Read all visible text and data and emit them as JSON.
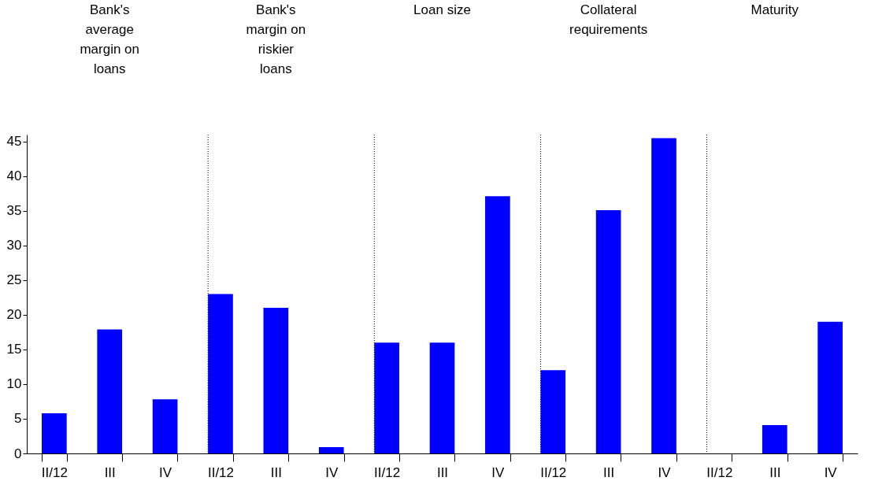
{
  "chart_data": {
    "type": "bar",
    "categories": [
      "II/12",
      "III",
      "IV",
      "II/12",
      "III",
      "IV",
      "II/12",
      "III",
      "IV",
      "II/12",
      "III",
      "IV",
      "II/12",
      "III",
      "IV"
    ],
    "values": [
      5.8,
      17.9,
      7.8,
      23,
      21,
      0.9,
      16,
      16,
      37.1,
      12,
      35.1,
      45.5,
      0,
      4.1,
      19
    ],
    "color": "#0000ff",
    "ylim": [
      0,
      46
    ],
    "yticks": [
      0,
      5,
      10,
      15,
      20,
      25,
      30,
      35,
      40,
      45
    ],
    "grid": false,
    "annotations": [
      "Bank's average margin on loans",
      "Bank's margin on riskier loans",
      "Loan size",
      "Collateral requirements",
      "Maturity"
    ]
  }
}
